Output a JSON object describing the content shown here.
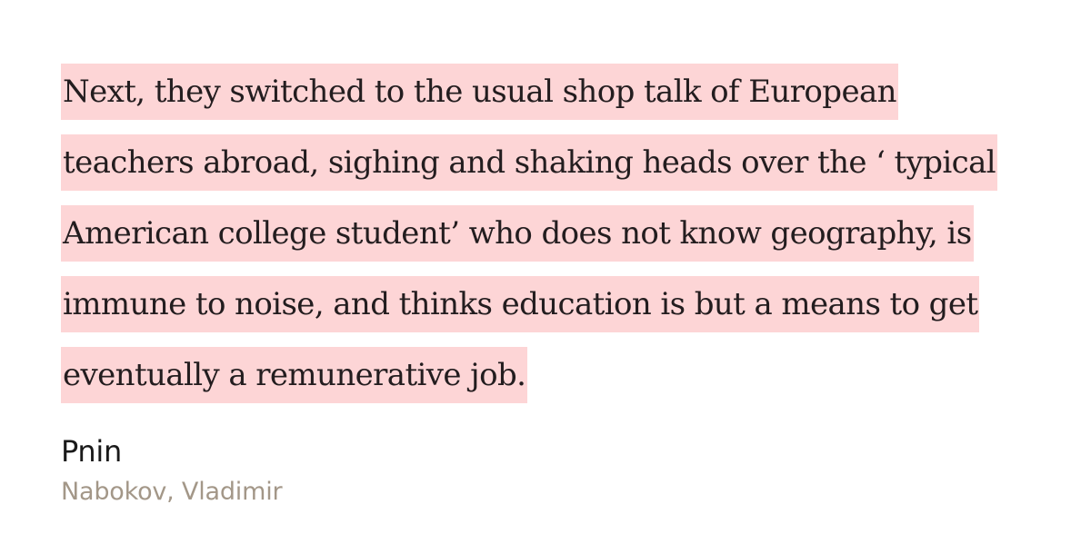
{
  "quote": {
    "lines": [
      "Next, they switched to the usual shop talk of European",
      "teachers abroad, sighing and shaking heads over the ‘ typical",
      "American college student’ who does not know geography, is",
      "immune to noise, and thinks education is but a means to get",
      "eventually a remunerative job."
    ]
  },
  "book": {
    "title": "Pnin",
    "author": "Nabokov, Vladimir"
  },
  "colors": {
    "highlight": "#fdd5d6",
    "quote_text": "#231d1f",
    "title_text": "#1a1a1a",
    "author_text": "#a39788",
    "background": "#ffffff"
  }
}
